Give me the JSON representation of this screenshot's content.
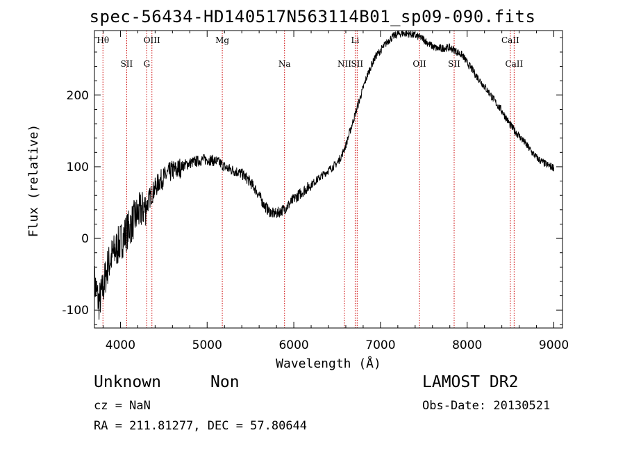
{
  "title": "spec-56434-HD140517N563114B01_sp09-090.fits",
  "info": {
    "object_class": "Unknown",
    "object_subclass": "Non",
    "survey": "LAMOST DR2",
    "cz": "cz = NaN",
    "obs_date": "Obs-Date: 20130521",
    "radec": "RA = 211.81277, DEC =  57.80644"
  },
  "colors": {
    "spectrum": "#000000",
    "line_marker": "#cc0000",
    "axes": "#000000"
  },
  "chart_data": {
    "type": "line",
    "title": "spec-56434-HD140517N563114B01_sp09-090.fits",
    "xlabel": "Wavelength (Å)",
    "ylabel": "Flux (relative)",
    "xlim": [
      3700,
      9100
    ],
    "ylim": [
      -125,
      290
    ],
    "xticks": [
      4000,
      5000,
      6000,
      7000,
      8000,
      9000
    ],
    "yticks": [
      -100,
      0,
      100,
      200
    ],
    "grid": false,
    "legend": "none",
    "series": [
      {
        "x": [
          3700,
          3750,
          3800,
          3850,
          3900,
          3950,
          4000,
          4050,
          4100,
          4150,
          4200,
          4250,
          4300,
          4350,
          4400,
          4450,
          4500,
          4550,
          4600,
          4650,
          4700,
          4750,
          4800,
          4850,
          4900,
          4950,
          5000,
          5050,
          5100,
          5150,
          5200,
          5250,
          5300,
          5350,
          5400,
          5450,
          5500,
          5550,
          5600,
          5650,
          5700,
          5750,
          5800,
          5850,
          5900,
          5950,
          6000,
          6050,
          6100,
          6150,
          6200,
          6250,
          6300,
          6350,
          6400,
          6450,
          6500,
          6550,
          6600,
          6650,
          6700,
          6750,
          6800,
          6850,
          6900,
          6950,
          7000,
          7050,
          7100,
          7150,
          7200,
          7250,
          7300,
          7350,
          7400,
          7450,
          7500,
          7550,
          7600,
          7650,
          7700,
          7750,
          7800,
          7850,
          7900,
          7950,
          8000,
          8050,
          8100,
          8150,
          8200,
          8250,
          8300,
          8350,
          8400,
          8450,
          8500,
          8550,
          8600,
          8650,
          8700,
          8750,
          8800,
          8850,
          8900,
          8950,
          9000
        ],
        "y": [
          -60,
          -90,
          -70,
          -40,
          -25,
          -15,
          -5,
          5,
          15,
          25,
          35,
          40,
          45,
          60,
          70,
          80,
          85,
          90,
          95,
          95,
          100,
          103,
          105,
          107,
          108,
          110,
          110,
          109,
          108,
          105,
          100,
          97,
          95,
          93,
          90,
          85,
          78,
          70,
          60,
          48,
          40,
          35,
          35,
          38,
          42,
          48,
          55,
          60,
          65,
          70,
          75,
          80,
          85,
          90,
          95,
          100,
          105,
          115,
          130,
          150,
          170,
          190,
          210,
          228,
          243,
          255,
          262,
          270,
          277,
          282,
          285,
          286,
          286,
          285,
          283,
          281,
          278,
          272,
          268,
          265,
          265,
          266,
          266,
          263,
          259,
          255,
          245,
          237,
          228,
          220,
          212,
          204,
          195,
          186,
          178,
          168,
          158,
          150,
          143,
          136,
          128,
          120,
          113,
          108,
          104,
          101,
          99
        ]
      }
    ],
    "line_markers": [
      {
        "label": "Hθ",
        "wavelength": 3798
      },
      {
        "label": "SII",
        "wavelength": 4072
      },
      {
        "label": "G",
        "wavelength": 4304
      },
      {
        "label": "OIII",
        "wavelength": 4363
      },
      {
        "label": "Mg",
        "wavelength": 5175
      },
      {
        "label": "Na",
        "wavelength": 5893
      },
      {
        "label": "NII",
        "wavelength": 6584
      },
      {
        "label": "Li",
        "wavelength": 6708
      },
      {
        "label": "SII",
        "wavelength": 6731
      },
      {
        "label": "OII",
        "wavelength": 7450
      },
      {
        "label": "SII",
        "wavelength": 7850
      },
      {
        "label": "CaII",
        "wavelength": 8498
      },
      {
        "label": "CaII",
        "wavelength": 8542
      }
    ]
  }
}
